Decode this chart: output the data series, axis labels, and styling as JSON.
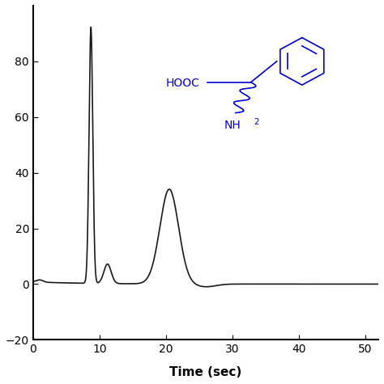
{
  "title": "",
  "xlabel": "Time (sec)",
  "ylabel": "",
  "xlim": [
    0,
    52
  ],
  "ylim": [
    -20,
    100
  ],
  "xticks": [
    0,
    10,
    20,
    30,
    40,
    50
  ],
  "yticks": [
    -20,
    0,
    20,
    40,
    60,
    80
  ],
  "background_color": "#ffffff",
  "line_color": "#1a1a1a",
  "line_width": 1.2,
  "molecule_color": "#0000cc",
  "xlabel_fontsize": 11,
  "tick_fontsize": 10,
  "molecule_fontsize": 10,
  "figsize": [
    4.74,
    4.75
  ],
  "dpi": 100
}
